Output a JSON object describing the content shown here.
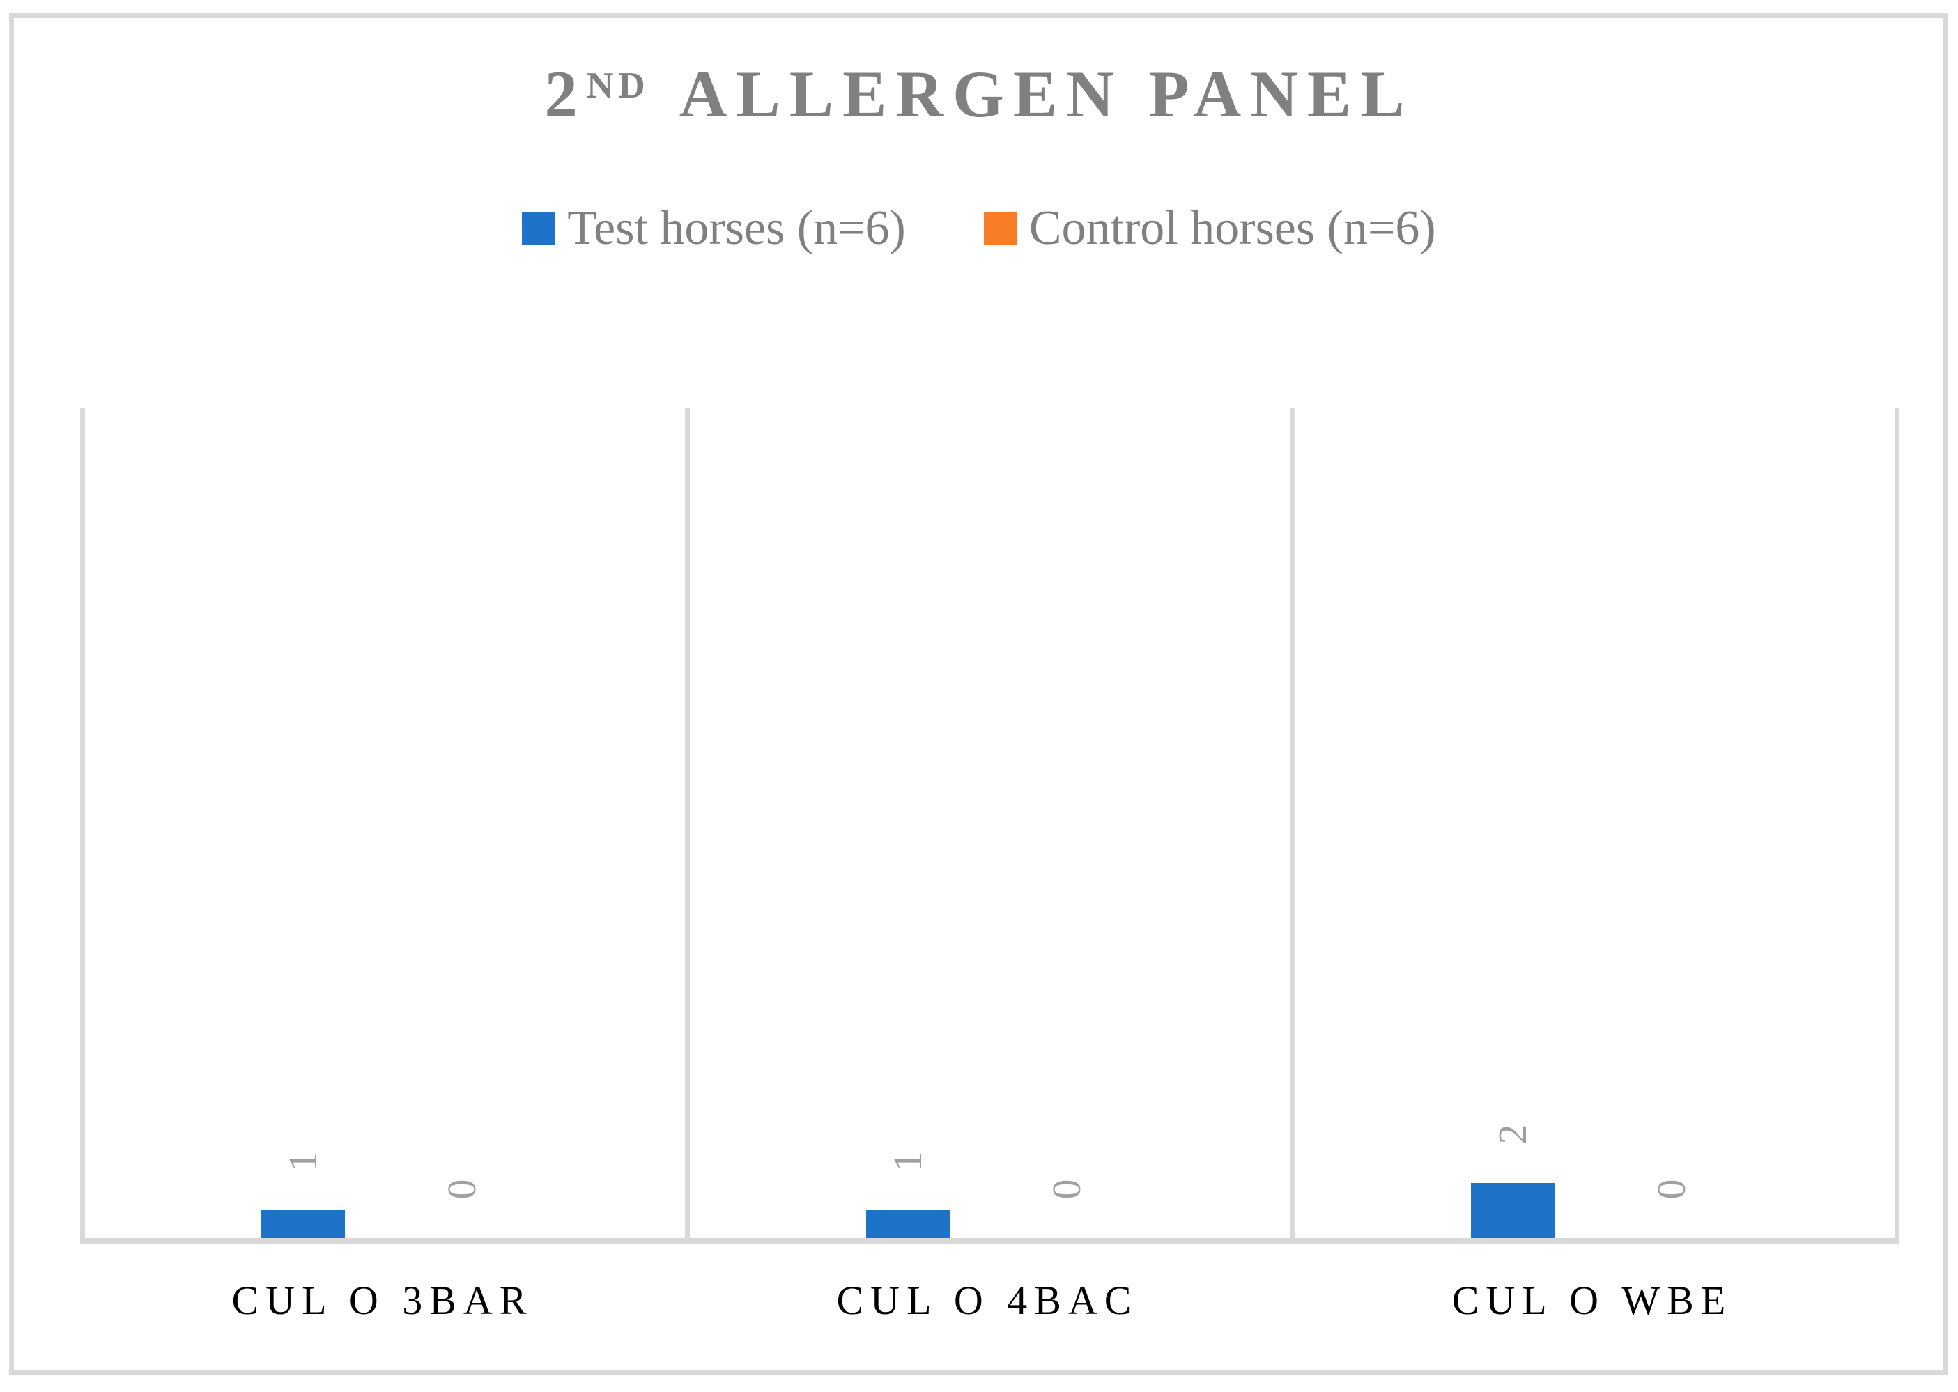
{
  "figure": {
    "background_color": "#FFFFFF",
    "border_color": "#D9D9D9"
  },
  "title": {
    "prefix": "2",
    "superscript": "ND",
    "rest": "ALLERGEN PANEL",
    "color": "#808080"
  },
  "legend": {
    "position": "top",
    "items": [
      {
        "label": "Test horses (n=6)",
        "color": "#1E73C8",
        "icon": "blue-square-swatch"
      },
      {
        "label": "Control horses (n=6)",
        "color": "#F97D27",
        "icon": "orange-square-swatch"
      }
    ]
  },
  "chart_data": {
    "type": "bar",
    "title": "2ND ALLERGEN PANEL",
    "categories": [
      "CUL O 3BAR",
      "CUL O 4BAC",
      "CUL O WBE"
    ],
    "series": [
      {
        "name": "Test horses (n=6)",
        "color": "#1E73C8",
        "values": [
          1,
          1,
          2
        ]
      },
      {
        "name": "Control horses (n=6)",
        "color": "#F97D27",
        "values": [
          0,
          0,
          0
        ]
      }
    ],
    "data_labels": {
      "visible": true,
      "rotation_deg": -90,
      "color": "#A0A0A0",
      "series_1_labels": [
        "1",
        "1",
        "2"
      ],
      "series_2_labels": [
        "0",
        "0",
        "0"
      ]
    },
    "xlabel": "",
    "ylabel": "",
    "ylim": [
      0,
      30
    ],
    "y_axis_visible": false,
    "grid": {
      "horizontal": false,
      "vertical_category_separators": true,
      "line_color": "#D9D9D9"
    },
    "category_label_color": "#000000",
    "legend_position": "top"
  }
}
